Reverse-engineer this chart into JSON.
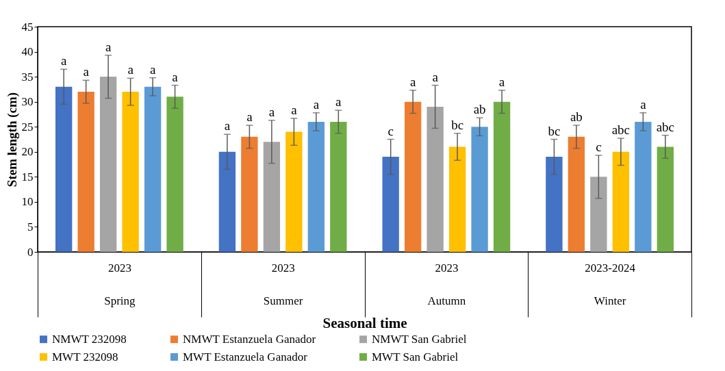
{
  "chart_data": {
    "type": "bar",
    "xlabel": "Seasonal time",
    "ylabel": "Stem length (cm)",
    "categories": [
      "2023\nSpring",
      "2023\nSummer",
      "2023\nAutumn",
      "2023-2024\nWinter"
    ],
    "ylim": [
      0,
      45
    ],
    "yticks": [
      0,
      5,
      10,
      15,
      20,
      25,
      30,
      35,
      40,
      45
    ],
    "grid": false,
    "legend": "bottom",
    "series": [
      {
        "name": "NMWT 232098",
        "color": "#4472c4",
        "values": [
          33,
          20,
          19,
          19
        ],
        "errors": [
          3.5,
          3.5,
          3.5,
          3.5
        ],
        "value_labels": [
          "a",
          "a",
          "c",
          "bc"
        ]
      },
      {
        "name": "NMWT Estanzuela Ganador",
        "color": "#ed7d31",
        "values": [
          32,
          23,
          30,
          23
        ],
        "errors": [
          2.3,
          2.3,
          2.3,
          2.3
        ],
        "value_labels": [
          "a",
          "a",
          "a",
          "ab"
        ]
      },
      {
        "name": "NMWT San Gabriel",
        "color": "#a5a5a5",
        "values": [
          35,
          22,
          29,
          15
        ],
        "errors": [
          4.3,
          4.3,
          4.3,
          4.3
        ],
        "value_labels": [
          "a",
          "a",
          "a",
          "c"
        ]
      },
      {
        "name": "MWT 232098",
        "color": "#ffc000",
        "values": [
          32,
          24,
          21,
          20
        ],
        "errors": [
          2.7,
          2.7,
          2.7,
          2.7
        ],
        "value_labels": [
          "a",
          "a",
          "bc",
          "abc"
        ]
      },
      {
        "name": "MWT Estanzuela Ganador",
        "color": "#5b9bd5",
        "values": [
          33,
          26,
          25,
          26
        ],
        "errors": [
          1.8,
          1.8,
          1.8,
          1.8
        ],
        "value_labels": [
          "a",
          "a",
          "ab",
          "a"
        ]
      },
      {
        "name": "MWT San Gabriel",
        "color": "#70ad47",
        "values": [
          31,
          26,
          30,
          21
        ],
        "errors": [
          2.3,
          2.3,
          2.3,
          2.3
        ],
        "value_labels": [
          "a",
          "a",
          "a",
          "abc"
        ]
      }
    ]
  }
}
